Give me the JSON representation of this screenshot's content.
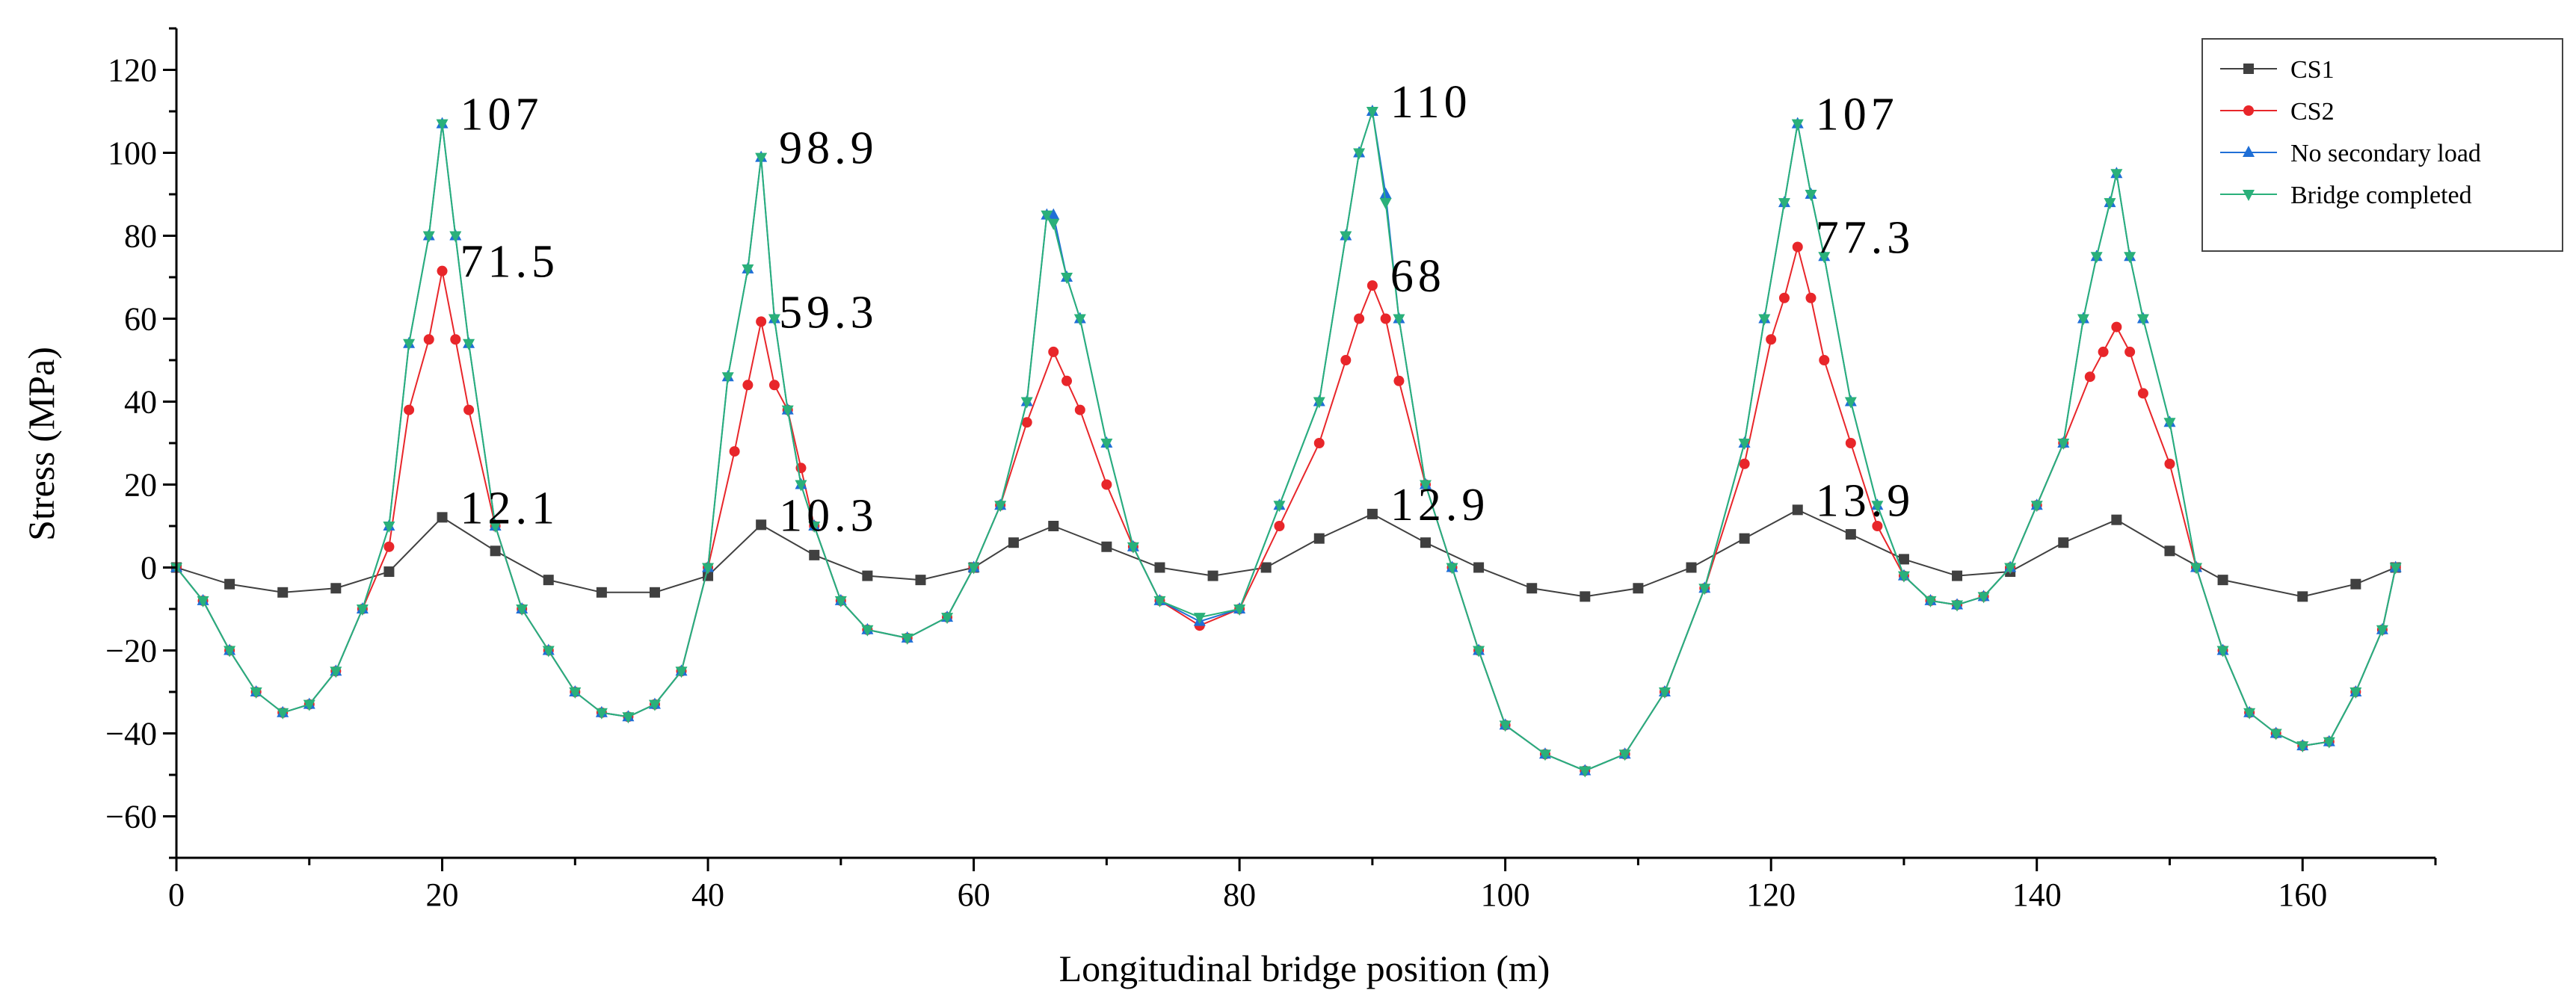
{
  "chart_data": {
    "type": "line",
    "title": "",
    "xlabel": "Longitudinal bridge position (m)",
    "ylabel": "Stress (MPa)",
    "xlim": [
      0,
      170
    ],
    "ylim": [
      -70,
      130
    ],
    "xticks": [
      0,
      20,
      40,
      60,
      80,
      100,
      120,
      140,
      160
    ],
    "yticks": [
      -60,
      -40,
      -20,
      0,
      20,
      40,
      60,
      80,
      100,
      120
    ],
    "legend_position": "top-right",
    "colors": {
      "CS1": "#404040",
      "CS2": "#e8262a",
      "No secondary load": "#1f6fd6",
      "Bridge completed": "#2ab07a"
    },
    "series": [
      {
        "name": "CS1",
        "marker": "square",
        "x": [
          0,
          4,
          8,
          12,
          16,
          20,
          24,
          28,
          32,
          36,
          40,
          44,
          48,
          52,
          56,
          60,
          63,
          66,
          70,
          74,
          78,
          82,
          86,
          90,
          94,
          98,
          102,
          106,
          110,
          114,
          118,
          122,
          126,
          130,
          134,
          138,
          142,
          146,
          150,
          154,
          160,
          164,
          167
        ],
        "values": [
          0,
          -4,
          -6,
          -5,
          -1,
          12.1,
          4,
          -3,
          -6,
          -6,
          -2,
          10.3,
          3,
          -2,
          -3,
          0,
          6,
          10,
          5,
          0,
          -2,
          0,
          7,
          12.9,
          6,
          0,
          -5,
          -7,
          -5,
          0,
          7,
          13.9,
          8,
          2,
          -2,
          -1,
          6,
          11.5,
          4,
          -3,
          -7,
          -4,
          0
        ]
      },
      {
        "name": "CS2",
        "marker": "circle",
        "x": [
          0,
          2,
          4,
          6,
          8,
          10,
          12,
          14,
          16,
          17.5,
          19,
          20,
          21,
          22,
          24,
          26,
          28,
          30,
          32,
          34,
          36,
          38,
          40,
          42,
          43,
          44,
          45,
          46,
          47,
          48,
          50,
          52,
          55,
          58,
          60,
          62,
          64,
          66,
          67,
          68,
          70,
          72,
          74,
          77,
          80,
          83,
          86,
          88,
          89,
          90,
          91,
          92,
          94,
          96,
          98,
          100,
          103,
          106,
          109,
          112,
          115,
          118,
          120,
          121,
          122,
          123,
          124,
          126,
          128,
          130,
          132,
          134,
          136,
          138,
          140,
          142,
          144,
          145,
          146,
          147,
          148,
          150,
          152,
          154,
          156,
          158,
          160,
          162,
          164,
          166,
          167
        ],
        "values": [
          0,
          -8,
          -20,
          -30,
          -35,
          -33,
          -25,
          -10,
          5,
          38,
          55,
          71.5,
          55,
          38,
          10,
          -10,
          -20,
          -30,
          -35,
          -36,
          -33,
          -25,
          0,
          28,
          44,
          59.3,
          44,
          38,
          24,
          10,
          -8,
          -15,
          -17,
          -12,
          0,
          15,
          35,
          52,
          45,
          38,
          20,
          5,
          -8,
          -14,
          -10,
          10,
          30,
          50,
          60,
          68,
          60,
          45,
          20,
          0,
          -20,
          -38,
          -45,
          -49,
          -45,
          -30,
          -5,
          25,
          55,
          65,
          77.3,
          65,
          50,
          30,
          10,
          -2,
          -8,
          -9,
          -7,
          0,
          15,
          30,
          46,
          52,
          58,
          52,
          42,
          25,
          0,
          -20,
          -35,
          -40,
          -43,
          -42,
          -30,
          -15,
          0
        ]
      },
      {
        "name": "No secondary load",
        "marker": "triangle-up",
        "x": [
          0,
          2,
          4,
          6,
          8,
          10,
          12,
          14,
          16,
          17.5,
          19,
          20,
          21,
          22,
          24,
          26,
          28,
          30,
          32,
          34,
          36,
          38,
          40,
          41.5,
          43,
          44,
          45,
          46,
          47,
          48,
          50,
          52,
          55,
          58,
          60,
          62,
          64,
          65.5,
          66,
          67,
          68,
          70,
          72,
          74,
          77,
          80,
          83,
          86,
          88,
          89,
          90,
          91,
          92,
          94,
          96,
          98,
          100,
          103,
          106,
          109,
          112,
          115,
          118,
          119.5,
          121,
          122,
          123,
          124,
          126,
          128,
          130,
          132,
          134,
          136,
          138,
          140,
          142,
          143.5,
          144.5,
          145.5,
          146,
          147,
          148,
          150,
          152,
          154,
          156,
          158,
          160,
          162,
          164,
          166,
          167
        ],
        "values": [
          0,
          -8,
          -20,
          -30,
          -35,
          -33,
          -25,
          -10,
          10,
          54,
          80,
          107,
          80,
          54,
          10,
          -10,
          -20,
          -30,
          -35,
          -36,
          -33,
          -25,
          0,
          46,
          72,
          98.9,
          60,
          38,
          20,
          10,
          -8,
          -15,
          -17,
          -12,
          0,
          15,
          40,
          85,
          85,
          70,
          60,
          30,
          5,
          -8,
          -13,
          -10,
          15,
          40,
          80,
          100,
          110,
          90,
          60,
          20,
          0,
          -20,
          -38,
          -45,
          -49,
          -45,
          -30,
          -5,
          30,
          60,
          88,
          107,
          90,
          75,
          40,
          15,
          -2,
          -8,
          -9,
          -7,
          0,
          15,
          30,
          60,
          75,
          88,
          95,
          75,
          60,
          35,
          0,
          -20,
          -35,
          -40,
          -43,
          -42,
          -30,
          -15,
          0
        ]
      },
      {
        "name": "Bridge completed",
        "marker": "triangle-down",
        "x": [
          0,
          2,
          4,
          6,
          8,
          10,
          12,
          14,
          16,
          17.5,
          19,
          20,
          21,
          22,
          24,
          26,
          28,
          30,
          32,
          34,
          36,
          38,
          40,
          41.5,
          43,
          44,
          45,
          46,
          47,
          48,
          50,
          52,
          55,
          58,
          60,
          62,
          64,
          65.5,
          66,
          67,
          68,
          70,
          72,
          74,
          77,
          80,
          83,
          86,
          88,
          89,
          90,
          91,
          92,
          94,
          96,
          98,
          100,
          103,
          106,
          109,
          112,
          115,
          118,
          119.5,
          121,
          122,
          123,
          124,
          126,
          128,
          130,
          132,
          134,
          136,
          138,
          140,
          142,
          143.5,
          144.5,
          145.5,
          146,
          147,
          148,
          150,
          152,
          154,
          156,
          158,
          160,
          162,
          164,
          166,
          167
        ],
        "values": [
          0,
          -8,
          -20,
          -30,
          -35,
          -33,
          -25,
          -10,
          10,
          54,
          80,
          107,
          80,
          54,
          10,
          -10,
          -20,
          -30,
          -35,
          -36,
          -33,
          -25,
          0,
          46,
          72,
          98.9,
          60,
          38,
          20,
          10,
          -8,
          -15,
          -17,
          -12,
          0,
          15,
          40,
          85,
          83,
          70,
          60,
          30,
          5,
          -8,
          -12,
          -10,
          15,
          40,
          80,
          100,
          110,
          88,
          60,
          20,
          0,
          -20,
          -38,
          -45,
          -49,
          -45,
          -30,
          -5,
          30,
          60,
          88,
          107,
          90,
          75,
          40,
          15,
          -2,
          -8,
          -9,
          -7,
          0,
          15,
          30,
          60,
          75,
          88,
          95,
          75,
          60,
          35,
          0,
          -20,
          -35,
          -40,
          -43,
          -42,
          -30,
          -15,
          0
        ]
      }
    ],
    "annotations": [
      {
        "text": "107",
        "x": 20,
        "y": 107
      },
      {
        "text": "71.5",
        "x": 20,
        "y": 71.5
      },
      {
        "text": "12.1",
        "x": 20,
        "y": 12.1
      },
      {
        "text": "98.9",
        "x": 44,
        "y": 98.9
      },
      {
        "text": "59.3",
        "x": 44,
        "y": 59.3
      },
      {
        "text": "10.3",
        "x": 44,
        "y": 10.3
      },
      {
        "text": "110",
        "x": 90,
        "y": 110
      },
      {
        "text": "68",
        "x": 90,
        "y": 68
      },
      {
        "text": "12.9",
        "x": 90,
        "y": 12.9
      },
      {
        "text": "107",
        "x": 122,
        "y": 107
      },
      {
        "text": "77.3",
        "x": 122,
        "y": 77.3
      },
      {
        "text": "13.9",
        "x": 122,
        "y": 13.9
      }
    ]
  }
}
